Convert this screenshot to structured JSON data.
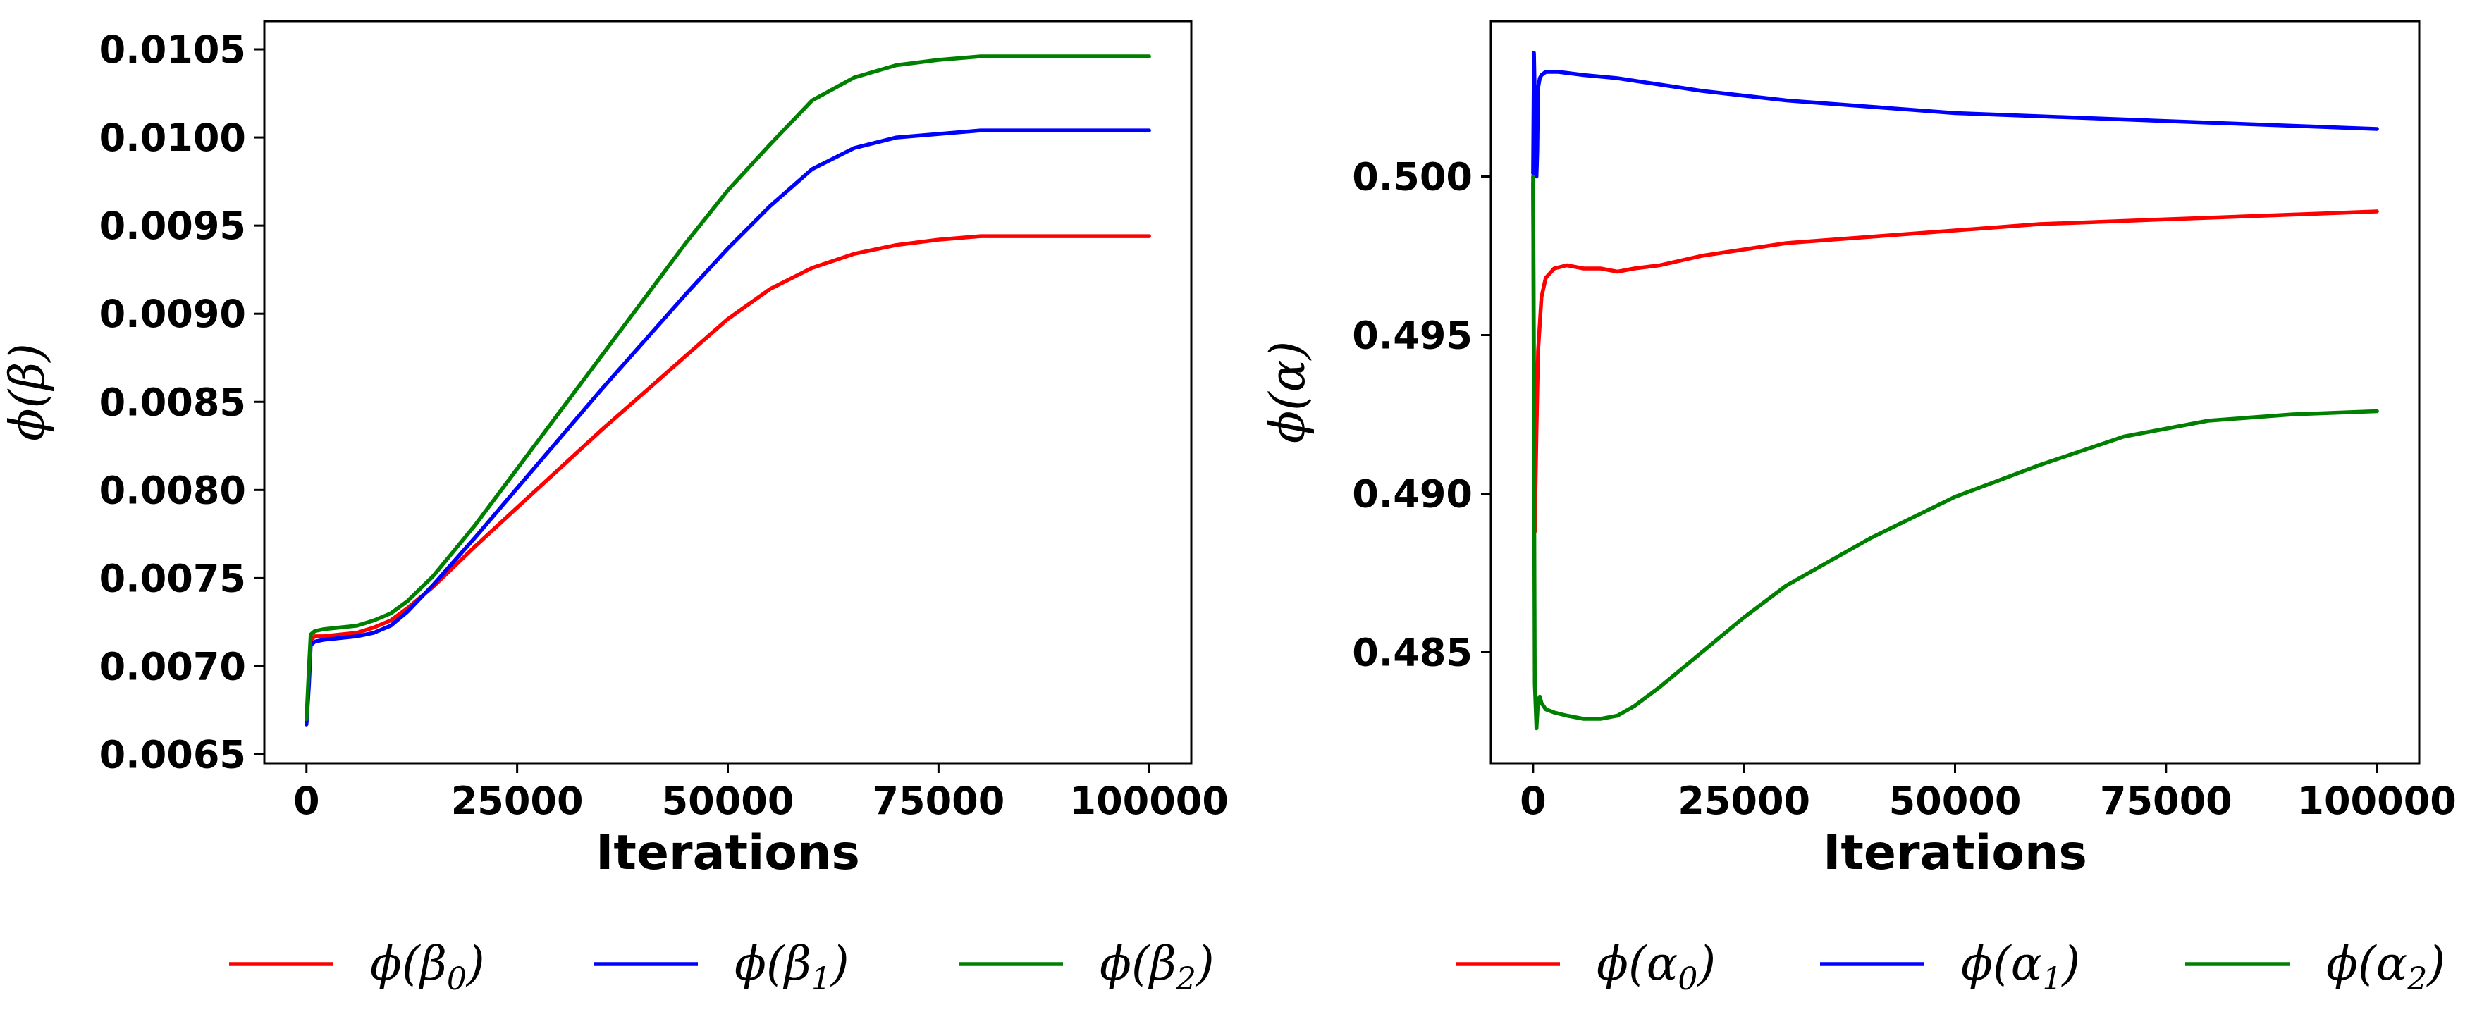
{
  "chart_data": [
    {
      "type": "line",
      "xlabel": "Iterations",
      "ylabel": "ϕ(β)",
      "xlim": [
        -5000,
        105000
      ],
      "ylim": [
        0.00645,
        0.01066
      ],
      "xticks": [
        0,
        25000,
        50000,
        75000,
        100000
      ],
      "xtick_labels": [
        "0",
        "25000",
        "50000",
        "75000",
        "100000"
      ],
      "yticks": [
        0.0065,
        0.007,
        0.0075,
        0.008,
        0.0085,
        0.009,
        0.0095,
        0.01,
        0.0105
      ],
      "ytick_labels": [
        "0.0065",
        "0.0070",
        "0.0075",
        "0.0080",
        "0.0085",
        "0.0090",
        "0.0095",
        "0.0100",
        "0.0105"
      ],
      "legend_position": "bottom",
      "series": [
        {
          "name": "ϕ(β0)",
          "label_main": "ϕ(β",
          "label_sub": "0",
          "label_close": ")",
          "color": "#ff0000",
          "x": [
            0,
            300,
            500,
            1000,
            2000,
            4000,
            6000,
            8000,
            10000,
            12000,
            15000,
            20000,
            25000,
            30000,
            35000,
            40000,
            45000,
            50000,
            55000,
            60000,
            65000,
            70000,
            75000,
            80000,
            90000,
            100000
          ],
          "y": [
            0.00668,
            0.00695,
            0.00715,
            0.00717,
            0.00717,
            0.00718,
            0.00719,
            0.00722,
            0.00726,
            0.00733,
            0.00745,
            0.00768,
            0.0079,
            0.00812,
            0.00834,
            0.00855,
            0.00876,
            0.00897,
            0.00914,
            0.00926,
            0.00934,
            0.00939,
            0.00942,
            0.00944,
            0.00944,
            0.00944
          ]
        },
        {
          "name": "ϕ(β1)",
          "label_main": "ϕ(β",
          "label_sub": "1",
          "label_close": ")",
          "color": "#0000ff",
          "x": [
            0,
            300,
            500,
            1000,
            2000,
            4000,
            6000,
            8000,
            10000,
            12000,
            15000,
            20000,
            25000,
            30000,
            35000,
            40000,
            45000,
            50000,
            55000,
            60000,
            65000,
            70000,
            75000,
            80000,
            90000,
            100000
          ],
          "y": [
            0.00667,
            0.0069,
            0.00712,
            0.00714,
            0.00715,
            0.00716,
            0.00717,
            0.00719,
            0.00723,
            0.00731,
            0.00746,
            0.00773,
            0.00801,
            0.00829,
            0.00857,
            0.00884,
            0.00911,
            0.00937,
            0.00961,
            0.00982,
            0.00994,
            0.01,
            0.01002,
            0.01004,
            0.01004,
            0.01004
          ]
        },
        {
          "name": "ϕ(β2)",
          "label_main": "ϕ(β",
          "label_sub": "2",
          "label_close": ")",
          "color": "#008000",
          "x": [
            0,
            300,
            500,
            1000,
            2000,
            4000,
            6000,
            8000,
            10000,
            12000,
            15000,
            20000,
            25000,
            30000,
            35000,
            40000,
            45000,
            50000,
            55000,
            60000,
            65000,
            70000,
            75000,
            80000,
            90000,
            100000
          ],
          "y": [
            0.0067,
            0.007,
            0.00718,
            0.0072,
            0.00721,
            0.00722,
            0.00723,
            0.00726,
            0.0073,
            0.00737,
            0.00751,
            0.0078,
            0.00812,
            0.00844,
            0.00876,
            0.00908,
            0.0094,
            0.0097,
            0.00996,
            0.01021,
            0.01034,
            0.01041,
            0.01044,
            0.01046,
            0.01046,
            0.01046
          ]
        }
      ]
    },
    {
      "type": "line",
      "xlabel": "Iterations",
      "ylabel": "ϕ(α)",
      "xlim": [
        -5000,
        105000
      ],
      "ylim": [
        0.4815,
        0.5049
      ],
      "xticks": [
        0,
        25000,
        50000,
        75000,
        100000
      ],
      "xtick_labels": [
        "0",
        "25000",
        "50000",
        "75000",
        "100000"
      ],
      "yticks": [
        0.485,
        0.49,
        0.495,
        0.5
      ],
      "ytick_labels": [
        "0.485",
        "0.490",
        "0.495",
        "0.500"
      ],
      "legend_position": "bottom",
      "series": [
        {
          "name": "ϕ(α0)",
          "label_main": "ϕ(α",
          "label_sub": "0",
          "label_close": ")",
          "color": "#ff0000",
          "x": [
            0,
            200,
            400,
            600,
            1000,
            1500,
            2500,
            4000,
            6000,
            8000,
            10000,
            12000,
            15000,
            20000,
            30000,
            40000,
            50000,
            60000,
            70000,
            80000,
            90000,
            100000
          ],
          "y": [
            0.4998,
            0.4888,
            0.492,
            0.4945,
            0.4962,
            0.4968,
            0.4971,
            0.4972,
            0.4971,
            0.4971,
            0.497,
            0.4971,
            0.4972,
            0.4975,
            0.4979,
            0.4981,
            0.4983,
            0.4985,
            0.4986,
            0.4987,
            0.4988,
            0.4989
          ]
        },
        {
          "name": "ϕ(α1)",
          "label_main": "ϕ(α",
          "label_sub": "1",
          "label_close": ")",
          "color": "#0000ff",
          "x": [
            0,
            100,
            200,
            300,
            400,
            500,
            600,
            800,
            1000,
            1500,
            3000,
            6000,
            10000,
            15000,
            20000,
            30000,
            40000,
            50000,
            60000,
            70000,
            80000,
            90000,
            100000
          ],
          "y": [
            0.5001,
            0.5039,
            0.5025,
            0.501,
            0.5,
            0.5008,
            0.5028,
            0.5031,
            0.5032,
            0.5033,
            0.5033,
            0.5032,
            0.5031,
            0.5029,
            0.5027,
            0.5024,
            0.5022,
            0.502,
            0.5019,
            0.5018,
            0.5017,
            0.5016,
            0.5015
          ]
        },
        {
          "name": "ϕ(α2)",
          "label_main": "ϕ(α",
          "label_sub": "2",
          "label_close": ")",
          "color": "#008000",
          "x": [
            0,
            200,
            400,
            600,
            800,
            1000,
            1500,
            2500,
            4000,
            6000,
            8000,
            10000,
            12000,
            15000,
            20000,
            25000,
            30000,
            40000,
            50000,
            60000,
            70000,
            80000,
            90000,
            100000
          ],
          "y": [
            0.5,
            0.484,
            0.4826,
            0.4835,
            0.4836,
            0.4834,
            0.4832,
            0.4831,
            0.483,
            0.4829,
            0.4829,
            0.483,
            0.4833,
            0.4839,
            0.485,
            0.4861,
            0.4871,
            0.4886,
            0.4899,
            0.4909,
            0.4918,
            0.4923,
            0.4925,
            0.4926
          ]
        }
      ]
    }
  ]
}
